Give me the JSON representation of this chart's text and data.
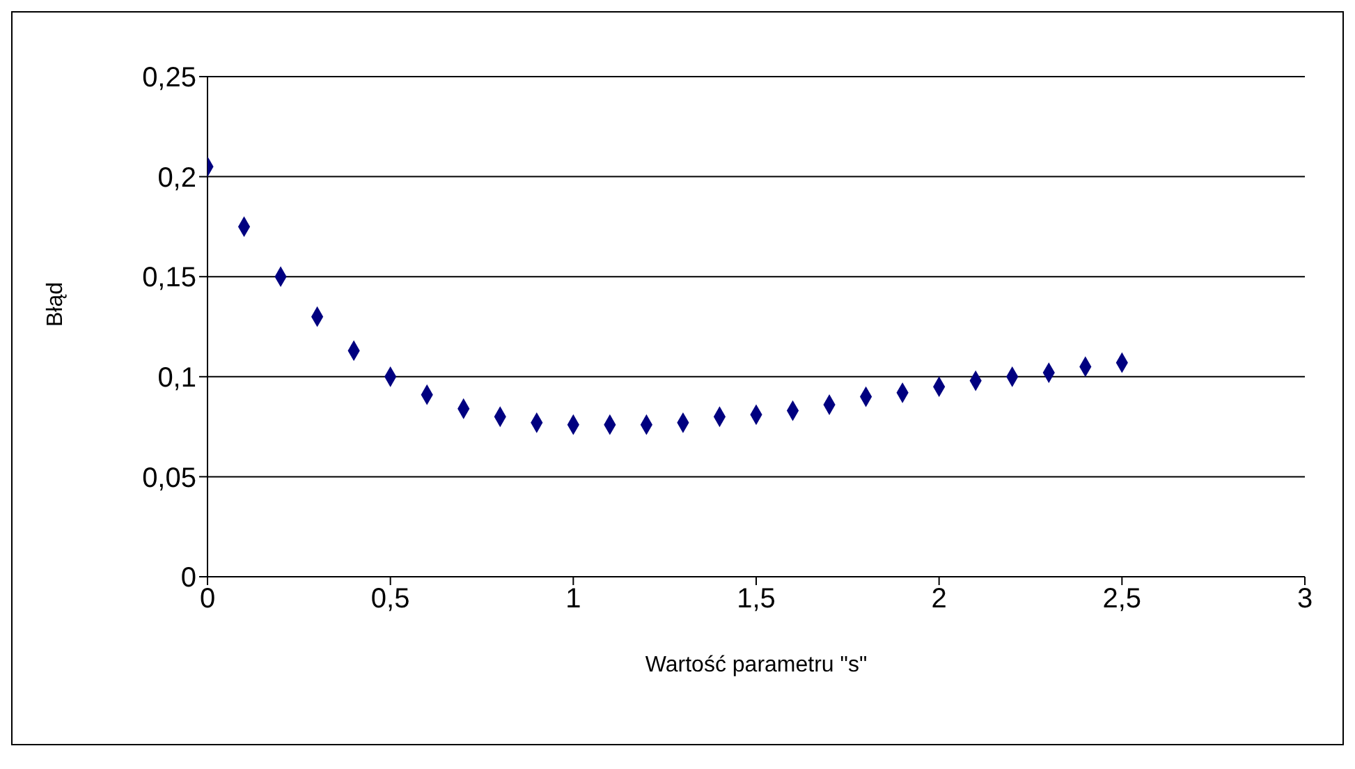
{
  "chart_data": {
    "type": "scatter",
    "xlabel": "Wartość parametru \"s\"",
    "ylabel": "Błąd",
    "x": [
      0,
      0.1,
      0.2,
      0.3,
      0.4,
      0.5,
      0.6,
      0.7,
      0.8,
      0.9,
      1.0,
      1.1,
      1.2,
      1.3,
      1.4,
      1.5,
      1.6,
      1.7,
      1.8,
      1.9,
      2.0,
      2.1,
      2.2,
      2.3,
      2.4,
      2.5
    ],
    "values": [
      0.205,
      0.175,
      0.15,
      0.13,
      0.113,
      0.1,
      0.091,
      0.084,
      0.08,
      0.077,
      0.076,
      0.076,
      0.076,
      0.077,
      0.08,
      0.081,
      0.083,
      0.086,
      0.09,
      0.092,
      0.095,
      0.098,
      0.1,
      0.102,
      0.105,
      0.107
    ],
    "color": "#000080",
    "marker": "diamond",
    "grid": "y",
    "xlim": [
      0,
      3
    ],
    "xticks": [
      0,
      {
        "value": 0.5,
        "label": "0,5"
      },
      1,
      {
        "value": 1.5,
        "label": "1,5"
      },
      2,
      {
        "value": 2.5,
        "label": "2,5"
      },
      3
    ],
    "ylim": [
      0,
      0.25
    ],
    "yticks": [
      0,
      {
        "value": 0.05,
        "label": "0,05"
      },
      {
        "value": 0.1,
        "label": "0,1"
      },
      {
        "value": 0.15,
        "label": "0,15"
      },
      {
        "value": 0.2,
        "label": "0,2"
      },
      {
        "value": 0.25,
        "label": "0,25"
      }
    ]
  }
}
